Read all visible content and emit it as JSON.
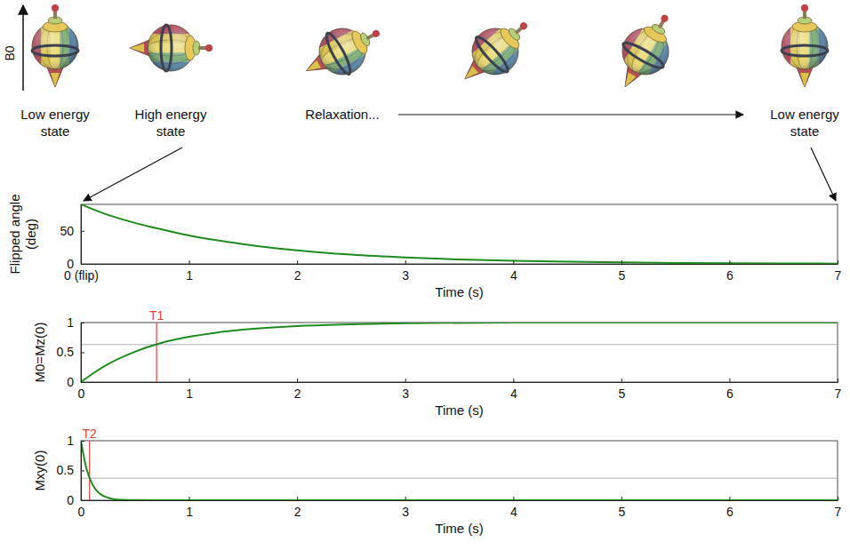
{
  "illustration": {
    "axis_label": "B0",
    "labels": [
      "Low energy state",
      "High energy state",
      "Relaxation...",
      "Low energy state"
    ]
  },
  "chart_data": [
    {
      "type": "line",
      "ylabel": "Flipped angle (deg)",
      "xlabel": "Time (s)",
      "xlim": [
        0,
        7
      ],
      "xticks": [
        {
          "value": 0,
          "label": "0 (flip)"
        },
        1,
        2,
        3,
        4,
        5,
        6,
        7
      ],
      "ylim": [
        0,
        90
      ],
      "yticks": [
        0,
        50
      ],
      "grid": false,
      "color": "#1f8a1f",
      "x": [
        0,
        0.25,
        0.5,
        0.75,
        1,
        1.5,
        2,
        2.5,
        3,
        3.5,
        4,
        4.5,
        5,
        5.5,
        6,
        6.5,
        7
      ],
      "values": [
        90,
        74,
        62,
        52,
        43,
        30,
        20.5,
        14,
        9.7,
        6.7,
        4.6,
        3.2,
        2.2,
        1.5,
        1,
        0.7,
        0.5
      ]
    },
    {
      "type": "line",
      "ylabel": "M0=Mz(0)",
      "xlabel": "Time (s)",
      "xlim": [
        0,
        7
      ],
      "xticks": [
        0,
        1,
        2,
        3,
        4,
        5,
        6,
        7
      ],
      "ylim": [
        0,
        1
      ],
      "yticks": [
        0,
        0.5,
        1
      ],
      "grid": false,
      "color": "#1f8a1f",
      "x": [
        0,
        0.1,
        0.25,
        0.5,
        0.75,
        1,
        1.25,
        1.5,
        2,
        2.5,
        3,
        4,
        5,
        6,
        7
      ],
      "values": [
        0,
        0.13,
        0.3,
        0.51,
        0.66,
        0.76,
        0.83,
        0.88,
        0.94,
        0.97,
        0.99,
        1,
        1,
        1,
        1
      ],
      "hlines": [
        0.63
      ],
      "annotations": [
        {
          "text": "T1",
          "x": 0.7,
          "color": "#e0403a"
        }
      ]
    },
    {
      "type": "line",
      "ylabel": "Mxy(0)",
      "xlabel": "Time (s)",
      "xlim": [
        0,
        7
      ],
      "xticks": [
        0,
        1,
        2,
        3,
        4,
        5,
        6,
        7
      ],
      "ylim": [
        0,
        1
      ],
      "yticks": [
        0,
        0.5,
        1
      ],
      "grid": false,
      "color": "#1f8a1f",
      "x": [
        0,
        0.05,
        0.1,
        0.15,
        0.2,
        0.25,
        0.3,
        0.4,
        0.5,
        0.7,
        1,
        2,
        3,
        4,
        5,
        6,
        7
      ],
      "values": [
        1,
        0.54,
        0.29,
        0.15,
        0.08,
        0.045,
        0.02,
        0.007,
        0.002,
        0,
        0,
        0,
        0,
        0,
        0,
        0,
        0
      ],
      "hlines": [
        0.37
      ],
      "annotations": [
        {
          "text": "T2",
          "x": 0.08,
          "color": "#e0403a"
        }
      ]
    }
  ]
}
